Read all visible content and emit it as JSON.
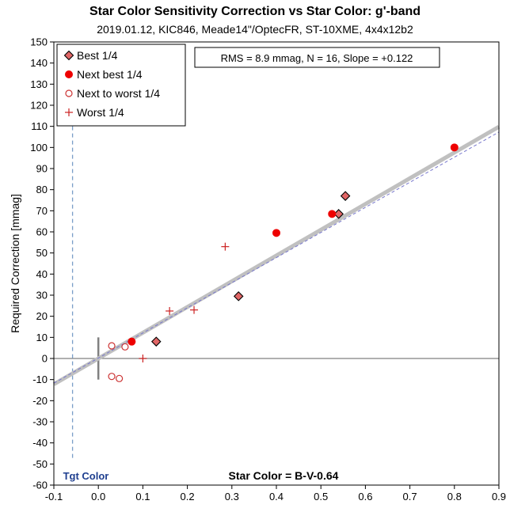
{
  "chart_data": {
    "type": "scatter",
    "title": "Star Color Sensitivity Correction vs Star Color: g'-band",
    "subtitle": "2019.01.12, KIC846, Meade14\"/OptecFR, ST-10XME, 4x4x12b2",
    "ylabel": "Required Correction [mmag]",
    "xlabel": "Star Color = B-V-0.64",
    "xlim": [
      -0.1,
      0.9
    ],
    "ylim": [
      -60,
      150
    ],
    "x_ticks": [
      -0.1,
      0.0,
      0.1,
      0.2,
      0.3,
      0.4,
      0.5,
      0.6,
      0.7,
      0.8,
      0.9
    ],
    "x_tick_labels": [
      "-0.1",
      "0.0",
      "0.1",
      "0.2",
      "0.3",
      "0.4",
      "0.5",
      "0.6",
      "0.7",
      "0.8",
      "0.9"
    ],
    "y_ticks": [
      -60,
      -50,
      -40,
      -30,
      -20,
      -10,
      0,
      10,
      20,
      30,
      40,
      50,
      60,
      70,
      80,
      90,
      100,
      110,
      120,
      130,
      140,
      150
    ],
    "grid": false,
    "legend_position": "top-left",
    "annotation": "RMS = 8.9 mmag, N = 16, Slope = +0.122",
    "target_label": "Tgt Color",
    "target_x": -0.058,
    "fit": {
      "slope": 122,
      "intercept": 0
    },
    "series": [
      {
        "name": "Best 1/4",
        "marker": "diamond",
        "points": [
          [
            0.13,
            8
          ],
          [
            0.315,
            29.5
          ],
          [
            0.54,
            68.5
          ],
          [
            0.555,
            77
          ]
        ]
      },
      {
        "name": "Next best 1/4",
        "marker": "filled-circle",
        "points": [
          [
            0.075,
            8
          ],
          [
            0.4,
            59.5
          ],
          [
            0.525,
            68.5
          ],
          [
            0.8,
            100
          ]
        ]
      },
      {
        "name": "Next to worst 1/4",
        "marker": "open-circle",
        "points": [
          [
            0.03,
            6
          ],
          [
            0.06,
            5.5
          ],
          [
            0.03,
            -8.5
          ],
          [
            0.047,
            -9.5
          ]
        ]
      },
      {
        "name": "Worst 1/4",
        "marker": "plus",
        "points": [
          [
            0.1,
            0
          ],
          [
            0.16,
            22.5
          ],
          [
            0.215,
            23
          ],
          [
            0.285,
            53
          ]
        ]
      }
    ],
    "colors": {
      "diamond_fill": "#e06666",
      "next_best": "#ee0000",
      "open_circle": "#cc3333",
      "plus": "#cc2222",
      "fit_thick": "#c0c0c0",
      "fit_dash": "#7777cc",
      "target_line": "#7a9ec8",
      "target_text": "#1f3f8f",
      "zero_line": "#808080"
    }
  }
}
